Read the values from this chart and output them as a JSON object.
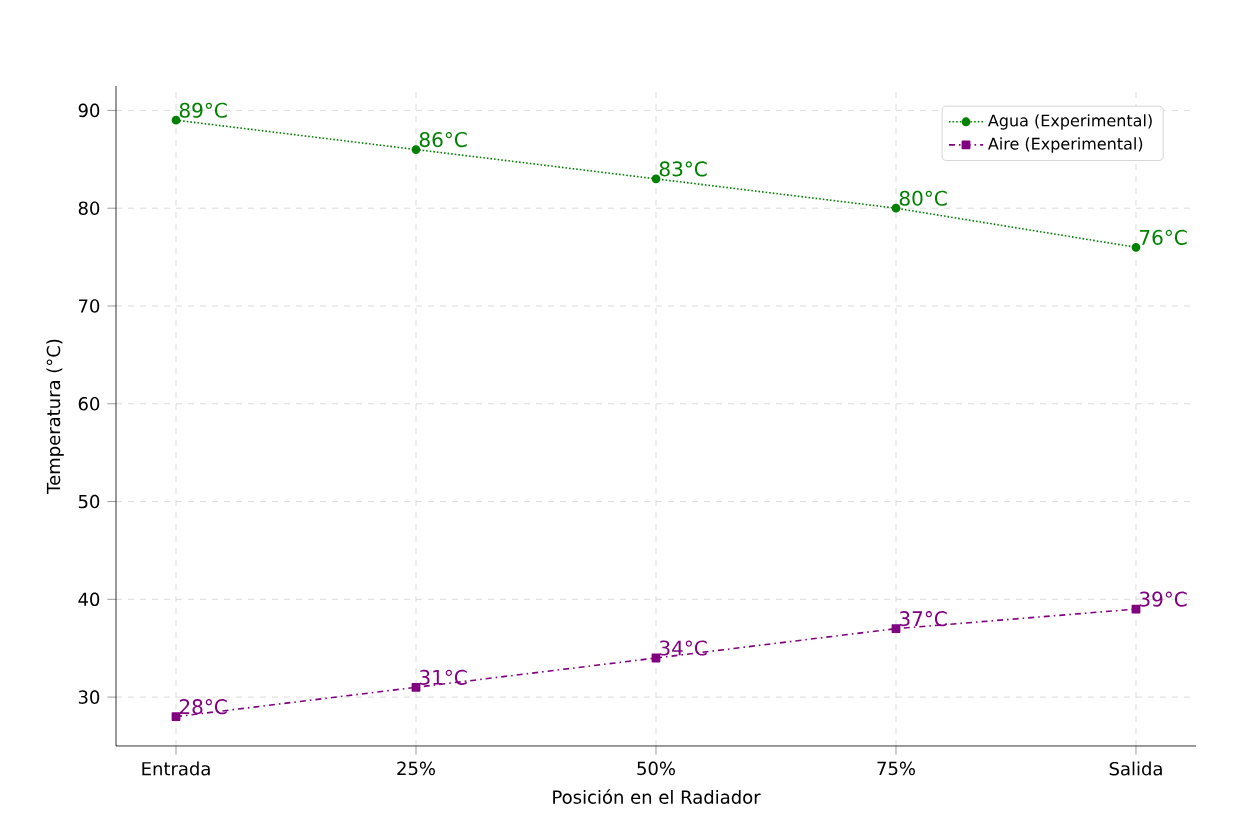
{
  "chart_data": {
    "type": "line",
    "xlabel": "Posición en el Radiador",
    "ylabel": "Temperatura (°C)",
    "categories": [
      "Entrada",
      "25%",
      "50%",
      "75%",
      "Salida"
    ],
    "series": [
      {
        "name": "Agua (Experimental)",
        "color": "#008000",
        "marker": "circle",
        "line_style": "dotted",
        "values": [
          89,
          86,
          83,
          80,
          76
        ],
        "value_labels": [
          "89°C",
          "86°C",
          "83°C",
          "80°C",
          "76°C"
        ]
      },
      {
        "name": "Aire (Experimental)",
        "color": "#800080",
        "marker": "square",
        "line_style": "dashed",
        "values": [
          28,
          31,
          34,
          37,
          39
        ],
        "value_labels": [
          "28°C",
          "31°C",
          "34°C",
          "37°C",
          "39°C"
        ]
      }
    ],
    "ylim": [
      25,
      92.5
    ],
    "yticks": [
      30,
      40,
      50,
      60,
      70,
      80,
      90
    ],
    "grid": true,
    "legend": "top right"
  }
}
